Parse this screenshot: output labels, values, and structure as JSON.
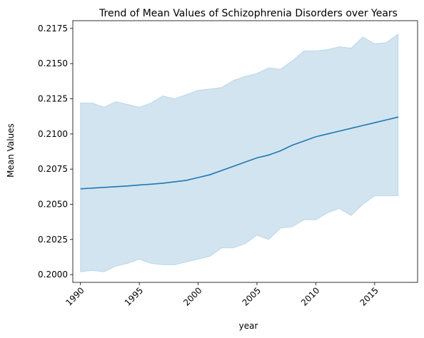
{
  "chart_data": {
    "type": "line",
    "title": "Trend of Mean Values of Schizophrenia Disorders over Years",
    "xlabel": "year",
    "ylabel": "Mean Values",
    "xlim": [
      1989.35,
      2018.65
    ],
    "ylim": [
      0.19945,
      0.21805
    ],
    "x_ticks": [
      1990,
      1995,
      2000,
      2005,
      2010,
      2015
    ],
    "y_ticks": [
      0.2,
      0.2025,
      0.205,
      0.2075,
      0.21,
      0.2125,
      0.215,
      0.2175
    ],
    "grid": false,
    "line_color": "#1f77b4",
    "band_color": "#1f77b4",
    "x": [
      1990,
      1991,
      1992,
      1993,
      1994,
      1995,
      1996,
      1997,
      1998,
      1999,
      2000,
      2001,
      2002,
      2003,
      2004,
      2005,
      2006,
      2007,
      2008,
      2009,
      2010,
      2011,
      2012,
      2013,
      2014,
      2015,
      2016,
      2017
    ],
    "series": [
      {
        "values": [
          0.2061,
          0.20615,
          0.2062,
          0.20625,
          0.2063,
          0.20637,
          0.20643,
          0.2065,
          0.2066,
          0.2067,
          0.2069,
          0.2071,
          0.2074,
          0.2077,
          0.208,
          0.2083,
          0.2085,
          0.2088,
          0.2092,
          0.2095,
          0.2098,
          0.21,
          0.2102,
          0.2104,
          0.2106,
          0.2108,
          0.211,
          0.2112
        ],
        "upper": [
          0.2122,
          0.2122,
          0.2119,
          0.2123,
          0.2121,
          0.2119,
          0.2122,
          0.2127,
          0.2125,
          0.2128,
          0.2131,
          0.2132,
          0.2133,
          0.2138,
          0.2141,
          0.2143,
          0.2147,
          0.2146,
          0.2152,
          0.2159,
          0.2159,
          0.216,
          0.2162,
          0.2161,
          0.2169,
          0.2164,
          0.2165,
          0.2171
        ],
        "lower": [
          0.2002,
          0.2003,
          0.2002,
          0.2006,
          0.2008,
          0.2011,
          0.2008,
          0.2007,
          0.2007,
          0.2009,
          0.2011,
          0.2013,
          0.2019,
          0.2019,
          0.2022,
          0.2028,
          0.2025,
          0.2033,
          0.2034,
          0.2039,
          0.2039,
          0.2044,
          0.2047,
          0.2042,
          0.205,
          0.2056,
          0.2056,
          0.2056
        ]
      }
    ]
  }
}
